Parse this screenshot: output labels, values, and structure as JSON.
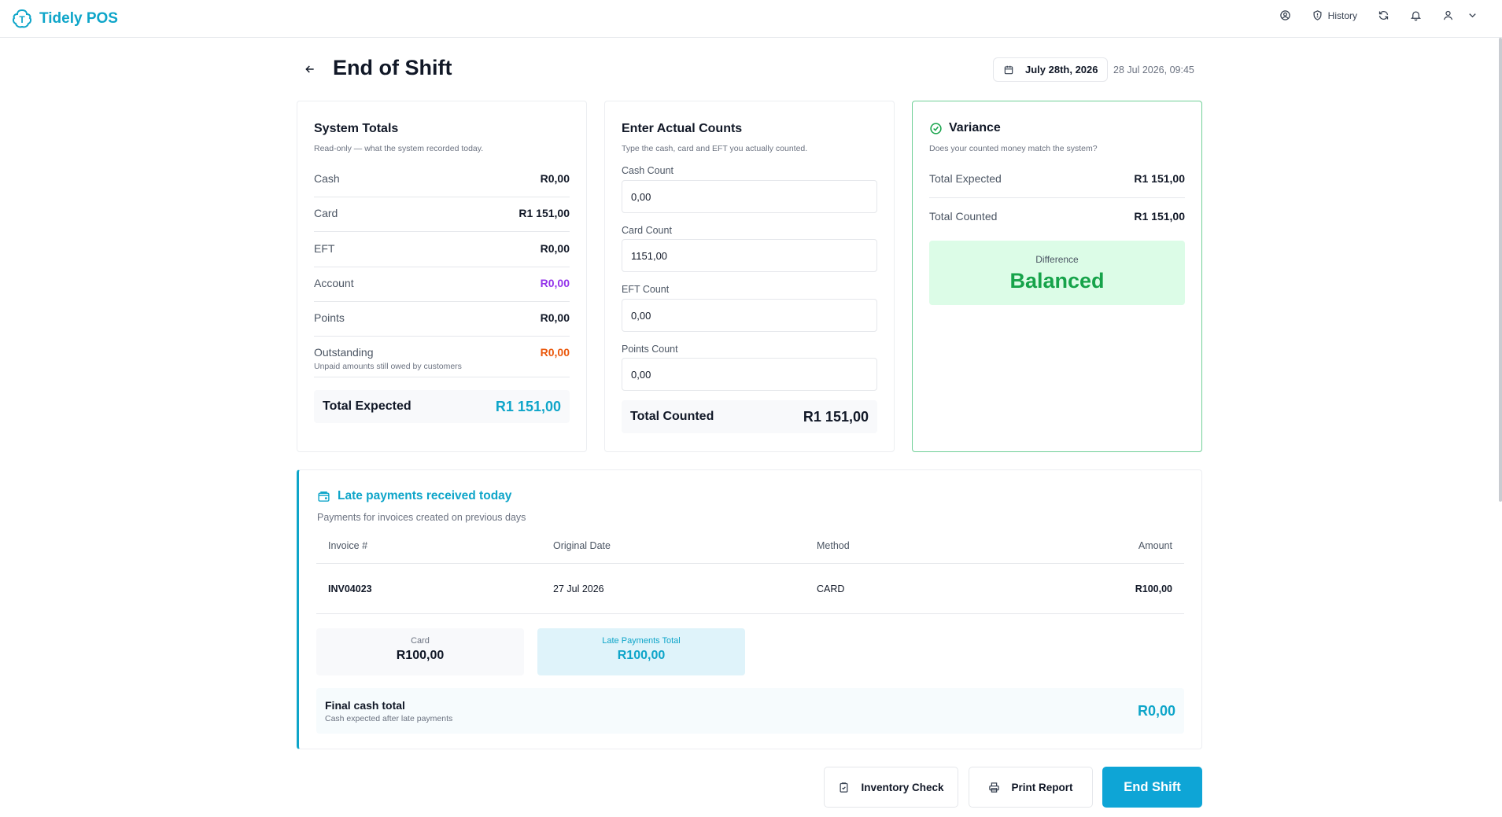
{
  "app": {
    "name": "Tidely POS"
  },
  "topbar": {
    "history_label": "History"
  },
  "header": {
    "title": "End of Shift",
    "date_button": "July 28th, 2026",
    "date_stamp": "28 Jul 2026, 09:45"
  },
  "system_totals": {
    "title": "System Totals",
    "subtitle": "Read-only — what the system recorded today.",
    "rows": [
      {
        "label": "Cash",
        "value": "R0,00"
      },
      {
        "label": "Card",
        "value": "R1 151,00"
      },
      {
        "label": "EFT",
        "value": "R0,00"
      },
      {
        "label": "Account",
        "value": "R0,00"
      },
      {
        "label": "Points",
        "value": "R0,00"
      },
      {
        "label": "Outstanding",
        "value": "R0,00",
        "note": "Unpaid amounts still owed by customers"
      }
    ],
    "total_label": "Total Expected",
    "total_value": "R1 151,00"
  },
  "actual_counts": {
    "title": "Enter Actual Counts",
    "subtitle": "Type the cash, card and EFT you actually counted.",
    "fields": [
      {
        "label": "Cash Count",
        "value": "0,00"
      },
      {
        "label": "Card Count",
        "value": "1151,00"
      },
      {
        "label": "EFT Count",
        "value": "0,00"
      },
      {
        "label": "Points Count",
        "value": "0,00"
      }
    ],
    "total_label": "Total Counted",
    "total_value": "R1 151,00"
  },
  "variance": {
    "title": "Variance",
    "subtitle": "Does your counted money match the system?",
    "rows": [
      {
        "label": "Total Expected",
        "value": "R1 151,00"
      },
      {
        "label": "Total Counted",
        "value": "R1 151,00"
      }
    ],
    "difference_label": "Difference",
    "difference_value": "Balanced"
  },
  "late_payments": {
    "title": "Late payments received today",
    "subtitle": "Payments for invoices created on previous days",
    "columns": [
      "Invoice #",
      "Original Date",
      "Method",
      "Amount"
    ],
    "rows": [
      {
        "invoice": "INV04023",
        "date": "27 Jul 2026",
        "method": "CARD",
        "amount": "R100,00"
      }
    ],
    "card_label": "Card",
    "card_value": "R100,00",
    "total_label": "Late Payments Total",
    "total_value": "R100,00",
    "final_label": "Final cash total",
    "final_sub": "Cash expected after late payments",
    "final_value": "R0,00"
  },
  "actions": {
    "inventory": "Inventory Check",
    "print": "Print Report",
    "end": "End Shift"
  },
  "colors": {
    "accent": "#0ea5c9",
    "success": "#16a34a",
    "purple": "#9333ea",
    "orange": "#ea580c"
  }
}
